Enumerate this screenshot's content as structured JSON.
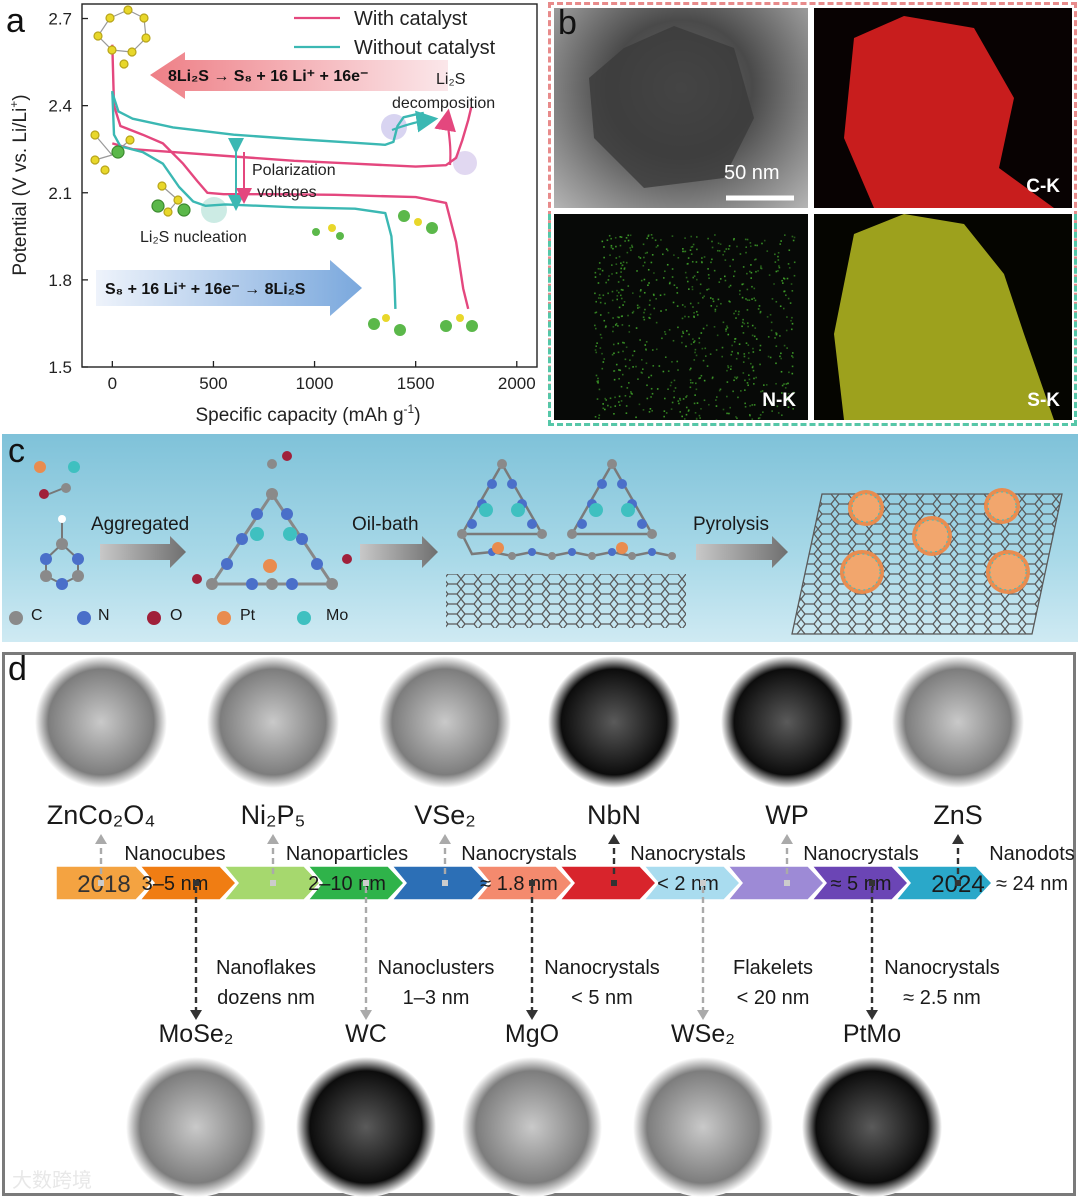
{
  "panel_a": {
    "letter": "a",
    "chart_data": {
      "type": "line",
      "xlabel_text": "Specific capacity (mAh g",
      "xlabel_sup": "-1",
      "xlabel_end": ")",
      "ylabel_text": "Potential (V vs. Li/Li",
      "ylabel_sup": "+",
      "ylabel_end": ")",
      "xlim": [
        -150,
        2100
      ],
      "ylim": [
        1.5,
        2.75
      ],
      "xticks": [
        0,
        500,
        1000,
        1500,
        2000
      ],
      "yticks": [
        1.5,
        1.8,
        2.1,
        2.4,
        2.7
      ],
      "ytick_labels": [
        "1.5",
        "1.8",
        "2.1",
        "2.4",
        "2.7"
      ],
      "legend_position": "top-right",
      "series": [
        {
          "name": "With catalyst",
          "color": "#e4477e",
          "charge": [
            [
              0,
              2.27
            ],
            [
              100,
              2.25
            ],
            [
              300,
              2.24
            ],
            [
              600,
              2.225
            ],
            [
              900,
              2.21
            ],
            [
              1200,
              2.2
            ],
            [
              1500,
              2.19
            ],
            [
              1650,
              2.195
            ],
            [
              1700,
              2.22
            ],
            [
              1730,
              2.28
            ],
            [
              1760,
              2.35
            ],
            [
              1775,
              2.395
            ]
          ],
          "discharge": [
            [
              0,
              2.61
            ],
            [
              8,
              2.4
            ],
            [
              40,
              2.33
            ],
            [
              150,
              2.3
            ],
            [
              250,
              2.27
            ],
            [
              350,
              2.2
            ],
            [
              420,
              2.14
            ],
            [
              470,
              2.1
            ],
            [
              550,
              2.095
            ],
            [
              800,
              2.095
            ],
            [
              1100,
              2.093
            ],
            [
              1500,
              2.085
            ],
            [
              1650,
              2.065
            ],
            [
              1700,
              1.93
            ],
            [
              1735,
              1.77
            ],
            [
              1760,
              1.7
            ]
          ]
        },
        {
          "name": "Without catalyst",
          "color": "#3bb8b3",
          "charge": [
            [
              0,
              2.445
            ],
            [
              30,
              2.38
            ],
            [
              100,
              2.355
            ],
            [
              300,
              2.325
            ],
            [
              600,
              2.3
            ],
            [
              900,
              2.285
            ],
            [
              1200,
              2.272
            ],
            [
              1350,
              2.265
            ],
            [
              1390,
              2.275
            ],
            [
              1410,
              2.33
            ],
            [
              1440,
              2.36
            ],
            [
              1500,
              2.37
            ],
            [
              1540,
              2.375
            ]
          ],
          "discharge": [
            [
              0,
              2.45
            ],
            [
              8,
              2.3
            ],
            [
              40,
              2.26
            ],
            [
              150,
              2.24
            ],
            [
              250,
              2.2
            ],
            [
              330,
              2.12
            ],
            [
              400,
              2.07
            ],
            [
              460,
              2.055
            ],
            [
              560,
              2.06
            ],
            [
              900,
              2.05
            ],
            [
              1200,
              2.045
            ],
            [
              1350,
              2.03
            ],
            [
              1380,
              1.95
            ],
            [
              1395,
              1.8
            ],
            [
              1400,
              1.7
            ]
          ]
        }
      ],
      "equations": {
        "top_line": "8Li₂S → S₈ + 16 Li⁺ + 16e⁻",
        "bottom_line": "S₈ + 16 Li⁺ + 16e⁻ → 8Li₂S"
      },
      "annotations": {
        "decomposition_1": "Li₂S",
        "decomposition_2": "decomposition",
        "polarization_1": "Polarization",
        "polarization_2": "voltages",
        "nucleation": "Li₂S nucleation"
      }
    }
  },
  "panel_b": {
    "letter": "b",
    "scale_bar": "50 nm",
    "tiles": [
      {
        "label": "",
        "kind": "tem"
      },
      {
        "label": "C-K",
        "kind": "carbon",
        "color": "#c81d1d"
      },
      {
        "label": "N-K",
        "kind": "nitrogen",
        "color": "#3fa02a"
      },
      {
        "label": "S-K",
        "kind": "sulfur",
        "color": "#d9de2a"
      }
    ]
  },
  "panel_c": {
    "letter": "c",
    "steps": [
      "Aggregated",
      "Oil-bath",
      "Pyrolysis"
    ],
    "legend": [
      {
        "symbol": "C",
        "color": "#8a8a8a"
      },
      {
        "symbol": "N",
        "color": "#4a6fc9"
      },
      {
        "symbol": "O",
        "color": "#a0203a"
      },
      {
        "symbol": "Pt",
        "color": "#e98c4f"
      },
      {
        "symbol": "Mo",
        "color": "#3fc0c0"
      }
    ]
  },
  "panel_d": {
    "letter": "d",
    "start_year": "2018",
    "end_year": "2024",
    "top_items": [
      {
        "material": "ZnCo₂O₄",
        "desc1": "Nanocubes",
        "desc2": "3–5 nm",
        "dark": false
      },
      {
        "material": "Ni₂P₅",
        "desc1": "Nanoparticles",
        "desc2": "2–10 nm",
        "dark": false
      },
      {
        "material": "VSe₂",
        "desc1": "Nanocrystals",
        "desc2": "≈ 1.8 nm",
        "dark": false
      },
      {
        "material": "NbN",
        "desc1": "Nanocrystals",
        "desc2": "< 2 nm",
        "dark": true
      },
      {
        "material": "WP",
        "desc1": "Nanocrystals",
        "desc2": "≈ 5 nm",
        "dark": true
      },
      {
        "material": "ZnS",
        "desc1": "Nanodots",
        "desc2": "≈ 24 nm",
        "dark": false
      }
    ],
    "bottom_items": [
      {
        "material": "MoSe₂",
        "desc1": "Nanoflakes",
        "desc2": "dozens nm",
        "dark": false
      },
      {
        "material": "WC",
        "desc1": "Nanoclusters",
        "desc2": "1–3 nm",
        "dark": true
      },
      {
        "material": "MgO",
        "desc1": "Nanocrystals",
        "desc2": "< 5 nm",
        "dark": false
      },
      {
        "material": "WSe₂",
        "desc1": "Flakelets",
        "desc2": "< 20 nm",
        "dark": false
      },
      {
        "material": "PtMo",
        "desc1": "Nanocrystals",
        "desc2": "≈ 2.5 nm",
        "dark": true
      }
    ],
    "timeline_colors": [
      "#f4a341",
      "#f07d13",
      "#a6d86e",
      "#2fb34a",
      "#2c6fb6",
      "#f48a6e",
      "#d8242c",
      "#a9dcef",
      "#9d8ad6",
      "#6b45b5",
      "#2aa8c9"
    ]
  },
  "watermark": "大数跨境"
}
